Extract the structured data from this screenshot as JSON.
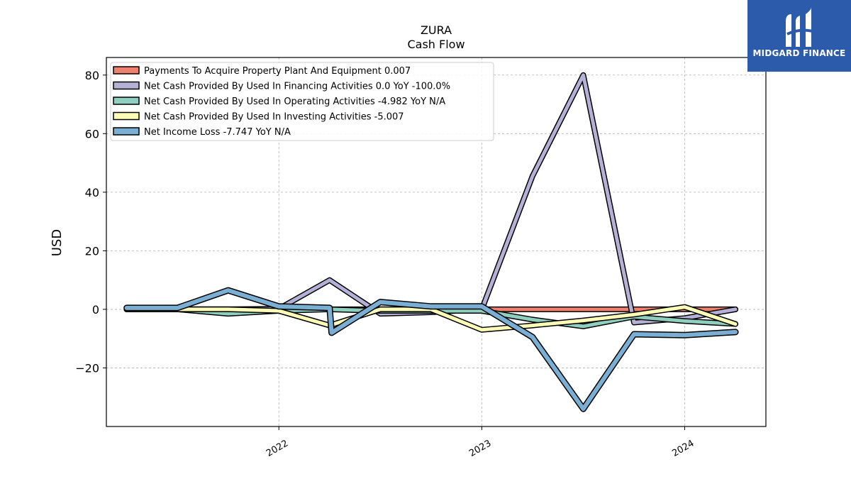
{
  "chart_data": {
    "type": "line",
    "title": "ZURA",
    "subtitle": "Cash Flow",
    "ylabel": "USD",
    "xlabel": "",
    "ylim": [
      -40,
      86
    ],
    "xlim": [
      2021.15,
      2024.4
    ],
    "yticks": [
      -20,
      0,
      20,
      40,
      60,
      80
    ],
    "ytick_labels": [
      "−20",
      "0",
      "20",
      "40",
      "60",
      "80"
    ],
    "xticks": [
      2022,
      2023,
      2024
    ],
    "xtick_labels": [
      "2022",
      "2023",
      "2024"
    ],
    "grid": true,
    "legend_position": "top-left",
    "series": [
      {
        "name": "Payments To Acquire Property Plant And Equipment  0.007",
        "color": "#f0806e",
        "x": [
          2021.25,
          2021.5,
          2021.75,
          2022.0,
          2022.25,
          2022.5,
          2022.75,
          2023.0,
          2023.25,
          2023.5,
          2023.75,
          2024.0,
          2024.25
        ],
        "y": [
          0.0,
          0.0,
          0.0,
          0.0,
          0.0,
          0.0,
          0.0,
          0.0,
          0.0,
          0.0,
          0.0,
          0.0,
          0.007
        ]
      },
      {
        "name": "Net Cash Provided By Used In Financing Activities  0.0 YoY -100.0%",
        "color": "#b5b0d5",
        "x": [
          2021.25,
          2021.5,
          2021.75,
          2022.0,
          2022.25,
          2022.5,
          2022.75,
          2023.0,
          2023.25,
          2023.5,
          2023.75,
          2024.0,
          2024.25
        ],
        "y": [
          0.0,
          0.0,
          0.0,
          0.2,
          10.0,
          -1.5,
          -1.0,
          0.0,
          45.5,
          80.0,
          -4.5,
          -3.0,
          0.0
        ]
      },
      {
        "name": "Net Cash Provided By Used In Operating Activities  -4.982 YoY N/A",
        "color": "#8fcfc0",
        "x": [
          2021.25,
          2021.5,
          2021.75,
          2022.0,
          2022.25,
          2022.5,
          2022.75,
          2023.0,
          2023.25,
          2023.5,
          2023.75,
          2024.0,
          2024.25
        ],
        "y": [
          0.0,
          0.0,
          -1.5,
          -0.5,
          0.0,
          -0.5,
          -0.5,
          -0.5,
          -3.5,
          -5.8,
          -2.5,
          -4.0,
          -4.982
        ]
      },
      {
        "name": "Net Cash Provided By Used In Investing Activities  -5.007",
        "color": "#fdfdb8",
        "x": [
          2021.25,
          2021.5,
          2021.75,
          2022.0,
          2022.25,
          2022.5,
          2022.75,
          2023.0,
          2023.25,
          2023.5,
          2023.75,
          2024.0,
          2024.25
        ],
        "y": [
          0.0,
          0.0,
          0.0,
          -0.5,
          -5.5,
          0.0,
          0.0,
          -7.0,
          -5.5,
          -3.8,
          -1.8,
          0.8,
          -5.007
        ]
      },
      {
        "name": "Net Income Loss  -7.747 YoY N/A",
        "color": "#7aaed3",
        "x": [
          2021.25,
          2021.5,
          2021.75,
          2022.0,
          2022.25,
          2022.26,
          2022.5,
          2022.75,
          2023.0,
          2023.25,
          2023.5,
          2023.75,
          2024.0,
          2024.25
        ],
        "y": [
          0.5,
          0.5,
          6.5,
          1.0,
          0.5,
          -8.0,
          2.5,
          1.0,
          1.0,
          -9.5,
          -34.0,
          -8.5,
          -8.8,
          -7.747
        ]
      }
    ]
  },
  "logo": {
    "text": "MIDGARD FINANCE",
    "background": "#2d5bab"
  }
}
